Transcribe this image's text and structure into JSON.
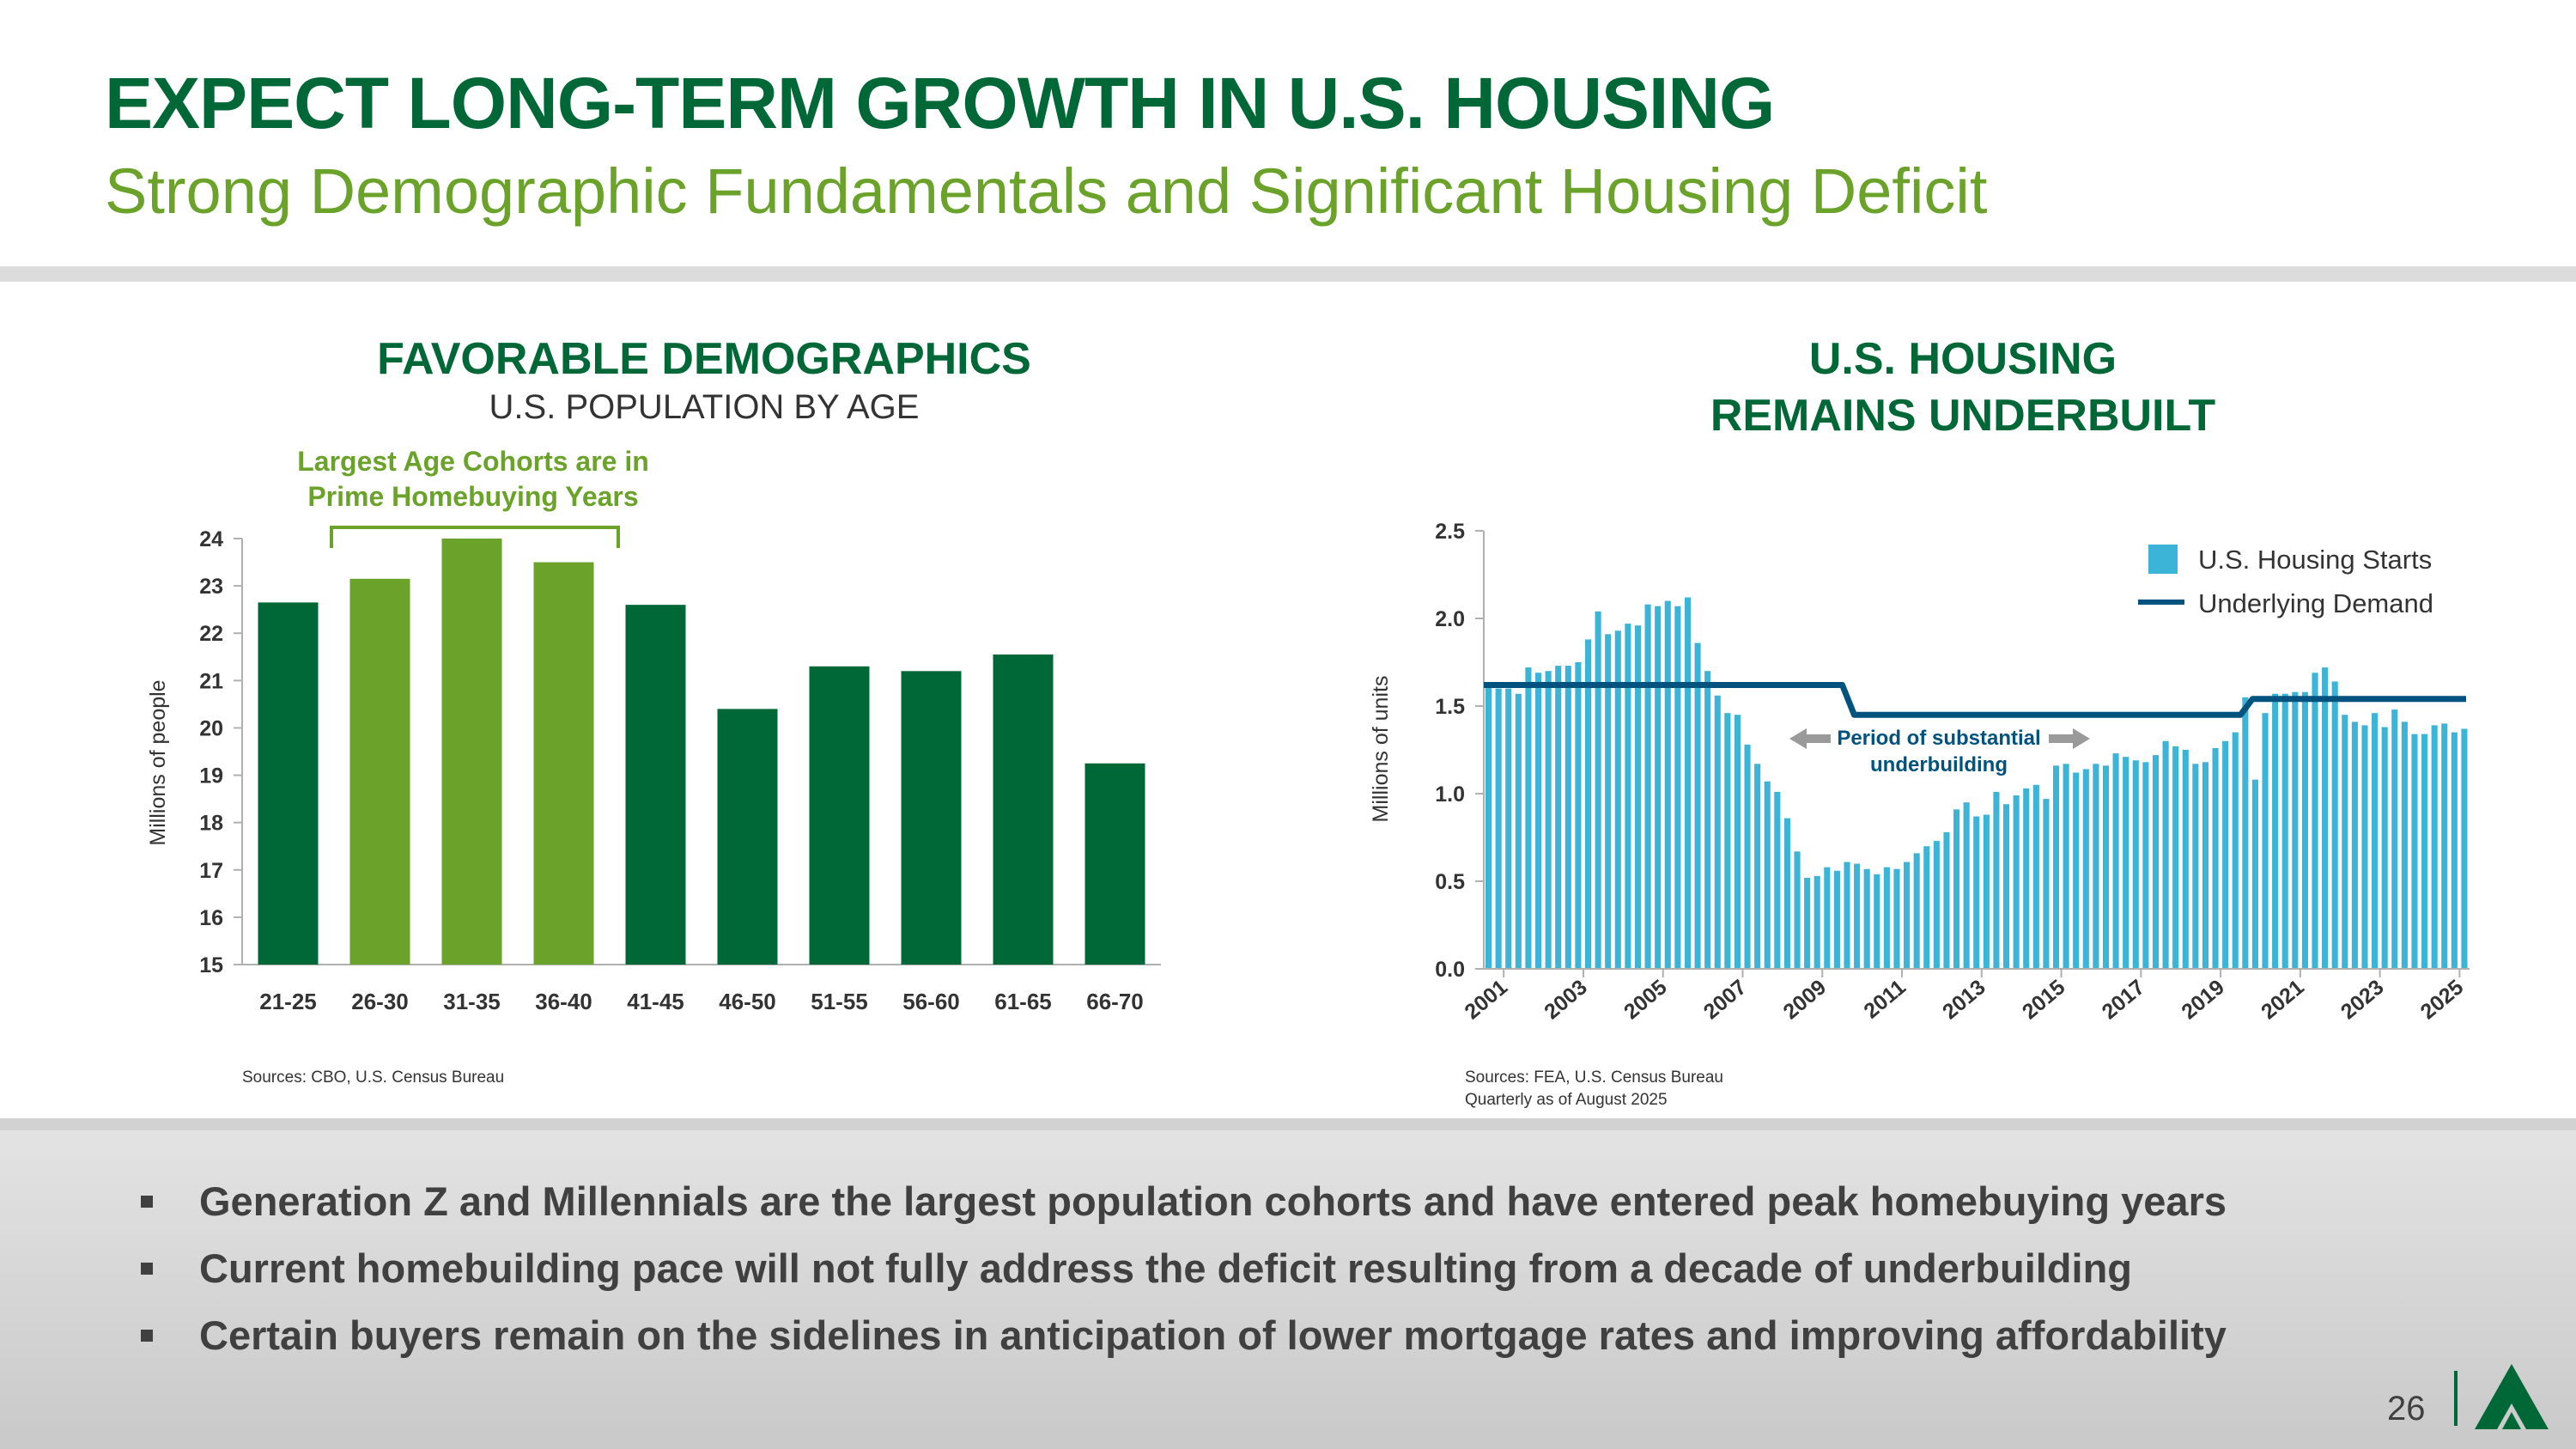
{
  "header": {
    "title": "EXPECT LONG-TERM GROWTH IN U.S. HOUSING",
    "subtitle": "Strong Demographic Fundamentals and Significant Housing Deficit"
  },
  "left_panel": {
    "title": "FAVORABLE DEMOGRAPHICS",
    "subtitle": "U.S. POPULATION BY AGE",
    "source": "Sources: CBO, U.S. Census Bureau"
  },
  "right_panel": {
    "title_line1": "U.S. HOUSING",
    "title_line2": "REMAINS UNDERBUILT",
    "source_line1": "Sources: FEA, U.S. Census Bureau",
    "source_line2": "Quarterly as of August 2025"
  },
  "chart_data": [
    {
      "type": "bar",
      "title": "U.S. POPULATION BY AGE",
      "xlabel": "",
      "ylabel": "Millions of people",
      "ylim": [
        15,
        24
      ],
      "yticks": [
        "15",
        "16",
        "17",
        "18",
        "19",
        "20",
        "21",
        "22",
        "23",
        "24"
      ],
      "categories": [
        "21-25",
        "26-30",
        "31-35",
        "36-40",
        "41-45",
        "46-50",
        "51-55",
        "56-60",
        "61-65",
        "66-70"
      ],
      "values": [
        22.65,
        23.15,
        24.0,
        23.5,
        22.6,
        20.4,
        21.3,
        21.2,
        21.55,
        19.25
      ],
      "highlight": [
        false,
        true,
        true,
        true,
        false,
        false,
        false,
        false,
        false,
        false
      ],
      "annotation_line1": "Largest Age Cohorts are in",
      "annotation_line2": "Prime Homebuying Years",
      "colors": {
        "primary": "#006837",
        "highlight": "#6aa22a"
      }
    },
    {
      "type": "bar",
      "title": "U.S. HOUSING REMAINS UNDERBUILT",
      "xlabel": "",
      "ylabel": "Millions of units",
      "ylim": [
        0,
        2.5
      ],
      "yticks": [
        "0.0",
        "0.5",
        "1.0",
        "1.5",
        "2.0",
        "2.5"
      ],
      "x_start": 2001,
      "xticks": [
        "2001",
        "2003",
        "2005",
        "2007",
        "2009",
        "2011",
        "2013",
        "2015",
        "2017",
        "2019",
        "2021",
        "2023",
        "2025"
      ],
      "series": [
        {
          "name": "U.S. Housing Starts",
          "values": [
            1.62,
            1.6,
            1.6,
            1.57,
            1.72,
            1.69,
            1.7,
            1.73,
            1.73,
            1.75,
            1.88,
            2.04,
            1.91,
            1.93,
            1.97,
            1.96,
            2.08,
            2.07,
            2.1,
            2.07,
            2.12,
            1.86,
            1.7,
            1.56,
            1.46,
            1.45,
            1.28,
            1.17,
            1.07,
            1.01,
            0.86,
            0.67,
            0.52,
            0.53,
            0.58,
            0.56,
            0.61,
            0.6,
            0.57,
            0.54,
            0.58,
            0.57,
            0.61,
            0.66,
            0.7,
            0.73,
            0.78,
            0.91,
            0.95,
            0.87,
            0.88,
            1.01,
            0.94,
            0.99,
            1.03,
            1.05,
            0.97,
            1.16,
            1.17,
            1.12,
            1.14,
            1.17,
            1.16,
            1.23,
            1.21,
            1.19,
            1.18,
            1.22,
            1.3,
            1.27,
            1.25,
            1.17,
            1.18,
            1.26,
            1.3,
            1.35,
            1.55,
            1.08,
            1.46,
            1.57,
            1.57,
            1.58,
            1.58,
            1.69,
            1.72,
            1.64,
            1.45,
            1.41,
            1.39,
            1.46,
            1.38,
            1.48,
            1.41,
            1.34,
            1.34,
            1.39,
            1.4,
            1.35,
            1.37
          ]
        },
        {
          "name": "Underlying Demand",
          "segments": [
            {
              "from": 2001.0,
              "to": 2010.0,
              "value": 1.62
            },
            {
              "from": 2010.3,
              "to": 2020.0,
              "value": 1.45
            },
            {
              "from": 2020.3,
              "to": 2025.9,
              "value": 1.54
            }
          ]
        }
      ],
      "annotation_line1": "Period of substantial",
      "annotation_line2": "underbuilding",
      "colors": {
        "bars": "#3cb4d8",
        "line": "#00527f"
      }
    }
  ],
  "bullets": [
    "Generation Z and Millennials are the largest population cohorts and have entered peak homebuying years",
    "Current homebuilding pace will not fully address the deficit resulting from a decade of underbuilding",
    "Certain buyers remain on the sidelines in anticipation of lower mortgage rates and improving affordability"
  ],
  "footer": {
    "page_number": "26"
  },
  "logo": {
    "icon": "triangle-logo-icon"
  }
}
